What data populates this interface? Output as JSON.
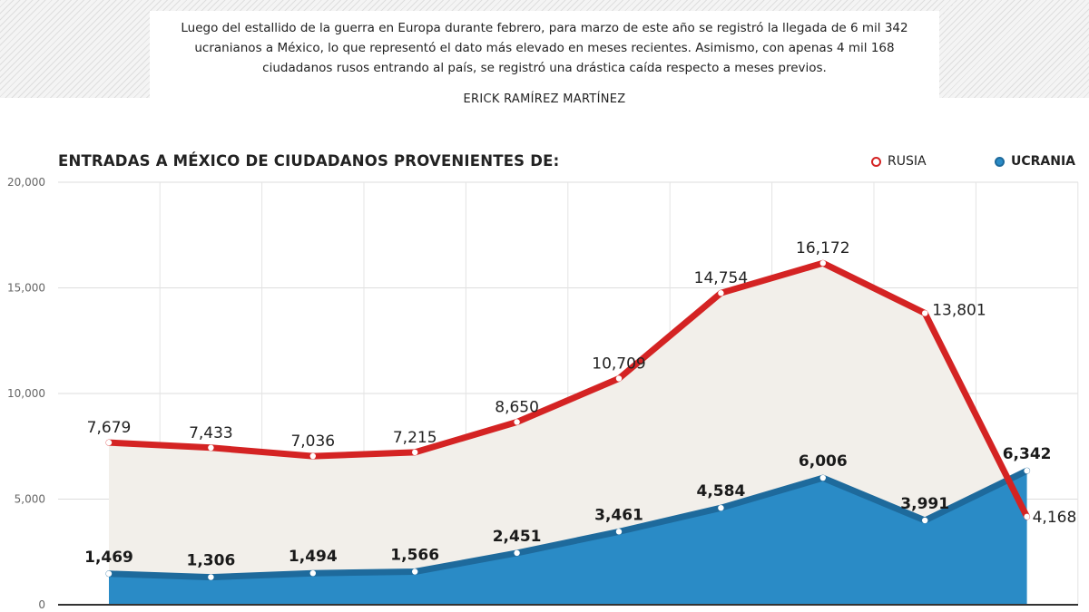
{
  "intro": {
    "text": "Luego del estallido de la guerra en Europa durante febrero, para marzo de este año se registró la llegada de 6 mil 342\nucranianos a México, lo que representó el dato más elevado en meses recientes. Asimismo, con apenas 4 mil 168\nciudadanos rusos entrando al país, se registró una drástica caída respecto a meses previos.",
    "author": "ERICK RAMÍREZ MARTÍNEZ"
  },
  "colors": {
    "russia": "#d42323",
    "ukraine": "#2a8bc6",
    "ukraine_line": "#1e6a9c",
    "russia_fill": "#f2efea"
  },
  "chart_data": {
    "type": "area",
    "title": "ENTRADAS A MÉXICO DE CIUDADANOS PROVENIENTES DE:",
    "ylim": [
      0,
      20000
    ],
    "y_ticks": [
      "0",
      "5,000",
      "10,000",
      "15,000",
      "20,000"
    ],
    "grid": true,
    "legend_position": "top-right",
    "categories": [
      "",
      "",
      "",
      "",
      "",
      "",
      "",
      "",
      "",
      ""
    ],
    "series": [
      {
        "name": "RUSIA",
        "values": [
          7679,
          7433,
          7036,
          7215,
          8650,
          10709,
          14754,
          16172,
          13801,
          4168
        ],
        "labels": [
          "7,679",
          "7,433",
          "7,036",
          "7,215",
          "8,650",
          "10,709",
          "14,754",
          "16,172",
          "13,801",
          "4,168"
        ]
      },
      {
        "name": "UCRANIA",
        "values": [
          1469,
          1306,
          1494,
          1566,
          2451,
          3461,
          4584,
          6006,
          3991,
          6342
        ],
        "labels": [
          "1,469",
          "1,306",
          "1,494",
          "1,566",
          "2,451",
          "3,461",
          "4,584",
          "6,006",
          "3,991",
          "6,342"
        ]
      }
    ]
  }
}
